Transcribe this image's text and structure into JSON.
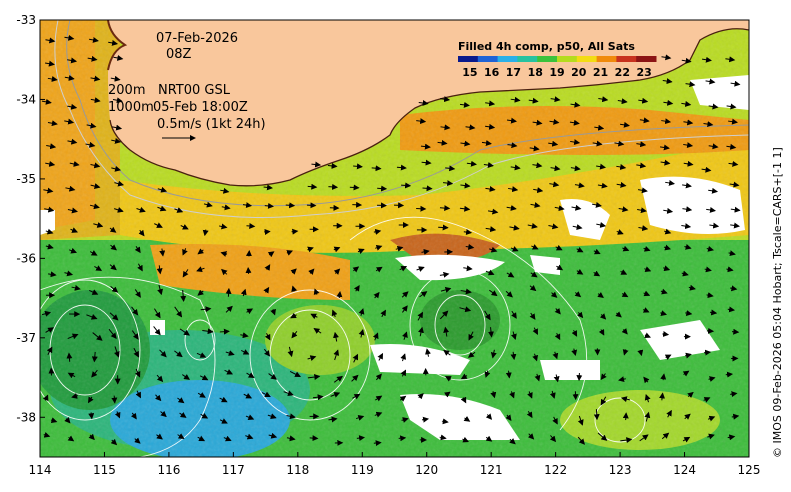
{
  "map": {
    "lon_range": [
      114,
      125
    ],
    "lat_range": [
      -38.5,
      -33
    ],
    "x_ticks": [
      114,
      115,
      116,
      117,
      118,
      119,
      120,
      121,
      122,
      123,
      124,
      125
    ],
    "y_ticks": [
      -33,
      -34,
      -35,
      -36,
      -37,
      -38
    ],
    "x_tick_labels": [
      "114",
      "115",
      "116",
      "117",
      "118",
      "119",
      "120",
      "121",
      "122",
      "123",
      "124",
      "125"
    ],
    "y_tick_labels": [
      "-33",
      "-34",
      "-35",
      "-36",
      "-37",
      "-38"
    ],
    "land_color": "#f9c79c",
    "cloud_color": "#ffffff"
  },
  "annotations": {
    "date": "07-Feb-2026",
    "time": "08Z",
    "contour_200": "200m",
    "contour_1000": "1000m",
    "nrt_label": "NRT00 GSL",
    "nrt_time": "05-Feb 18:00Z",
    "vector_scale": "0.5m/s (1kt 24h)"
  },
  "colorbar": {
    "title": "Filled 4h comp, p50, All Sats",
    "labels": [
      "15",
      "16",
      "17",
      "18",
      "19",
      "20",
      "21",
      "22",
      "23"
    ],
    "colors": [
      "#0a1a8c",
      "#1f63d6",
      "#2ab0e8",
      "#27c2a0",
      "#3cc23c",
      "#b5dc1e",
      "#f3dc14",
      "#f08a0c",
      "#c8321e",
      "#8c1414"
    ]
  },
  "credit": "© IMOS 09-Feb-2026 05:04 Hobart; Tscale=CARS+[-1 1]",
  "chart_data": {
    "type": "heatmap",
    "title": "Filled 4h comp, p50, All Sats",
    "xlabel": "",
    "ylabel": "",
    "xlim": [
      114,
      125
    ],
    "ylim": [
      -38.5,
      -33
    ],
    "color_scale": [
      15,
      23
    ]
  }
}
